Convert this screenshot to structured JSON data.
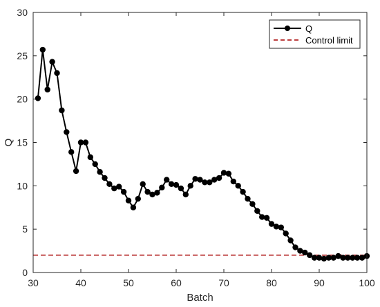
{
  "chart_data": {
    "type": "line",
    "xlabel": "Batch",
    "ylabel": "Q",
    "xlim": [
      30,
      100
    ],
    "ylim": [
      0,
      30
    ],
    "xticks": [
      30,
      40,
      50,
      60,
      70,
      80,
      90,
      100
    ],
    "yticks": [
      0,
      5,
      10,
      15,
      20,
      25,
      30
    ],
    "grid": false,
    "legend_position": "top-right",
    "series": [
      {
        "name": "Q",
        "color": "#000000",
        "marker": "circle",
        "x": [
          31,
          32,
          33,
          34,
          35,
          36,
          37,
          38,
          39,
          40,
          41,
          42,
          43,
          44,
          45,
          46,
          47,
          48,
          49,
          50,
          51,
          52,
          53,
          54,
          55,
          56,
          57,
          58,
          59,
          60,
          61,
          62,
          63,
          64,
          65,
          66,
          67,
          68,
          69,
          70,
          71,
          72,
          73,
          74,
          75,
          76,
          77,
          78,
          79,
          80,
          81,
          82,
          83,
          84,
          85,
          86,
          87,
          88,
          89,
          90,
          91,
          92,
          93,
          94,
          95,
          96,
          97,
          98,
          99,
          100
        ],
        "values": [
          20.1,
          25.7,
          21.1,
          24.3,
          23.0,
          18.7,
          16.2,
          13.9,
          11.7,
          15.0,
          15.0,
          13.3,
          12.5,
          11.6,
          10.9,
          10.2,
          9.7,
          9.9,
          9.3,
          8.3,
          7.5,
          8.5,
          10.2,
          9.3,
          9.0,
          9.2,
          9.8,
          10.7,
          10.2,
          10.1,
          9.7,
          9.0,
          10.0,
          10.8,
          10.7,
          10.4,
          10.4,
          10.7,
          10.9,
          11.5,
          11.4,
          10.5,
          10.0,
          9.3,
          8.5,
          7.9,
          7.1,
          6.4,
          6.3,
          5.6,
          5.3,
          5.2,
          4.5,
          3.7,
          2.9,
          2.5,
          2.3,
          2.0,
          1.7,
          1.7,
          1.6,
          1.7,
          1.7,
          1.9,
          1.7,
          1.7,
          1.7,
          1.7,
          1.7,
          1.9
        ]
      },
      {
        "name": "Control limit",
        "color": "#b22222",
        "style": "dashed",
        "x": [
          30,
          100
        ],
        "values": [
          2.0,
          2.0
        ]
      }
    ]
  }
}
